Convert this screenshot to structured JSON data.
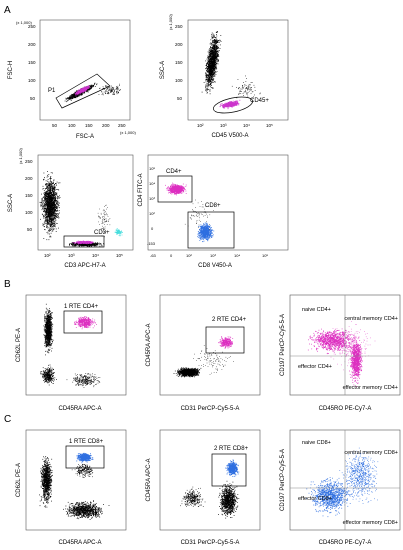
{
  "figure": {
    "panels": [
      {
        "label": "A",
        "plots": [
          {
            "id": "a1",
            "xlabel": "FSC-A",
            "ylabel": "FSC-H",
            "xticks": [
              "50",
              "100",
              "150",
              "200",
              "250"
            ],
            "yticks": [
              "50",
              "100",
              "150",
              "200",
              "250"
            ],
            "x_multiplier": "(x 1,000)",
            "y_multiplier": "(x 1,000)",
            "gates": [
              {
                "label": "P1"
              }
            ]
          },
          {
            "id": "a2",
            "xlabel": "CD45 V500-A",
            "ylabel": "SSC-A",
            "xticks": [
              "10²",
              "10³",
              "10⁴",
              "10⁵"
            ],
            "yticks": [
              "50",
              "100",
              "150",
              "200",
              "250"
            ],
            "y_multiplier": "(x 1,000)",
            "gates": [
              {
                "label": "CD45+"
              }
            ]
          },
          {
            "id": "a3",
            "xlabel": "CD3 APC-H7-A",
            "ylabel": "SSC-A",
            "xticks": [
              "10²",
              "10³",
              "10⁴",
              "10⁵"
            ],
            "yticks": [
              "50",
              "100",
              "150",
              "200",
              "250"
            ],
            "y_multiplier": "(x 1,000)",
            "gates": [
              {
                "label": "CD3+"
              }
            ]
          },
          {
            "id": "a4",
            "xlabel": "CD8 V450-A",
            "ylabel": "CD4 FITC-A",
            "xticks": [
              "-63",
              "0",
              "10²",
              "10³",
              "10⁴",
              "10⁵"
            ],
            "yticks": [
              "-153",
              "0",
              "10²",
              "10³",
              "10⁴",
              "10⁵"
            ],
            "gates": [
              {
                "label": "CD4+"
              },
              {
                "label": "CD8+"
              }
            ]
          }
        ]
      },
      {
        "label": "B",
        "plots": [
          {
            "id": "b1",
            "xlabel": "CD45RA APC-A",
            "ylabel": "CD62L PE-A",
            "gates": [
              {
                "label": "1 RTE CD4+"
              }
            ]
          },
          {
            "id": "b2",
            "xlabel": "CD31 PerCP-Cy5-5-A",
            "ylabel": "CD45RA APC-A",
            "gates": [
              {
                "label": "2 RTE CD4+"
              }
            ]
          },
          {
            "id": "b3",
            "xlabel": "CD45RO PE-Cy7-A",
            "ylabel": "CD197 PerCP-Cy5-5-A",
            "quadrants": [
              "naive CD4+",
              "central memory CD4+",
              "effector CD4+",
              "effector memory CD4+"
            ]
          }
        ]
      },
      {
        "label": "C",
        "plots": [
          {
            "id": "c1",
            "xlabel": "CD45RA APC-A",
            "ylabel": "CD62L PE-A",
            "gates": [
              {
                "label": "1 RTE CD8+"
              }
            ]
          },
          {
            "id": "c2",
            "xlabel": "CD31 PerCP-Cy5-5-A",
            "ylabel": "CD45RA APC-A",
            "gates": [
              {
                "label": "2 RTE CD8+"
              }
            ]
          },
          {
            "id": "c3",
            "xlabel": "CD45RO PE-Cy7-A",
            "ylabel": "CD197 PerCP-Cy5-5-A",
            "quadrants": [
              "naive CD8+",
              "central memory CD8+",
              "effector CD8+",
              "effector memory CD8+"
            ]
          }
        ]
      }
    ]
  },
  "colors": {
    "events": "#000000",
    "cd45_gated": "#cc33cc",
    "cd4": "#dd2fc0",
    "cd8": "#2f6fe0",
    "cd3_gradient": [
      "#44dddd",
      "#cc33cc"
    ],
    "axis": "#000000",
    "frame": "#555555"
  }
}
